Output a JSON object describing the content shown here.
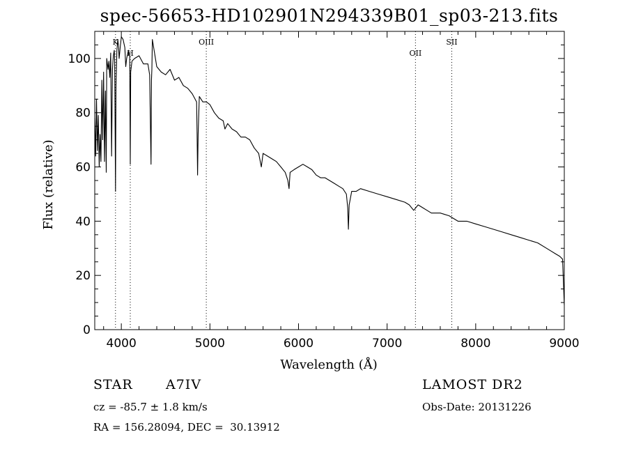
{
  "chart_data": {
    "type": "line",
    "title": "spec-56653-HD102901N294339B01_sp03-213.fits",
    "xlabel": "Wavelength (Å)",
    "ylabel": "Flux (relative)",
    "xlim": [
      3700,
      9000
    ],
    "ylim": [
      0,
      110
    ],
    "x_ticks": [
      4000,
      5000,
      6000,
      7000,
      8000,
      9000
    ],
    "y_ticks": [
      0,
      20,
      40,
      60,
      80,
      100
    ],
    "line_markers": [
      {
        "label": "K",
        "x": 3934
      },
      {
        "label": "H",
        "x": 4101
      },
      {
        "label": "OIII",
        "x": 4959
      },
      {
        "label": "OII",
        "x": 7320
      },
      {
        "label": "SII",
        "x": 7730
      }
    ],
    "series": [
      {
        "x": [
          3700,
          3710,
          3720,
          3730,
          3740,
          3750,
          3760,
          3770,
          3780,
          3790,
          3800,
          3810,
          3820,
          3830,
          3835,
          3850,
          3860,
          3870,
          3880,
          3890,
          3900,
          3910,
          3920,
          3925,
          3934,
          3940,
          3950,
          3960,
          3970,
          3975,
          3990,
          4000,
          4020,
          4040,
          4050,
          4060,
          4080,
          4095,
          4101,
          4106,
          4120,
          4150,
          4200,
          4250,
          4300,
          4320,
          4335,
          4340,
          4345,
          4350,
          4400,
          4450,
          4500,
          4550,
          4600,
          4650,
          4700,
          4750,
          4800,
          4850,
          4855,
          4861,
          4867,
          4880,
          4920,
          4960,
          5000,
          5050,
          5100,
          5150,
          5170,
          5200,
          5250,
          5300,
          5350,
          5400,
          5450,
          5500,
          5550,
          5580,
          5600,
          5650,
          5700,
          5750,
          5800,
          5850,
          5880,
          5893,
          5905,
          5950,
          6000,
          6050,
          6100,
          6150,
          6200,
          6250,
          6300,
          6350,
          6400,
          6450,
          6500,
          6540,
          6555,
          6563,
          6572,
          6600,
          6650,
          6700,
          6800,
          6900,
          7000,
          7100,
          7200,
          7250,
          7300,
          7350,
          7400,
          7450,
          7500,
          7600,
          7700,
          7750,
          7800,
          7900,
          8000,
          8100,
          8200,
          8300,
          8400,
          8500,
          8600,
          8700,
          8800,
          8850,
          8900,
          8950,
          8980,
          9000
        ],
        "y": [
          78,
          64,
          85,
          66,
          79,
          60,
          72,
          62,
          92,
          70,
          95,
          62,
          88,
          58,
          100,
          96,
          99,
          93,
          102,
          64,
          96,
          101,
          103,
          99,
          51,
          90,
          103,
          107,
          104,
          100,
          105,
          108,
          107,
          104,
          97,
          100,
          103,
          101,
          61,
          95,
          99,
          100,
          101,
          98,
          98,
          94,
          61,
          92,
          96,
          107,
          97,
          95,
          94,
          96,
          92,
          93,
          90,
          89,
          87,
          84,
          72,
          57,
          72,
          86,
          84,
          84,
          83,
          80,
          78,
          77,
          74,
          76,
          74,
          73,
          71,
          71,
          70,
          67,
          65,
          60,
          65,
          64,
          63,
          62,
          60,
          58,
          55,
          52,
          58,
          59,
          60,
          61,
          60,
          59,
          57,
          56,
          56,
          55,
          54,
          53,
          52,
          50,
          45,
          37,
          46,
          51,
          51,
          52,
          51,
          50,
          49,
          48,
          47,
          46,
          44,
          46,
          45,
          44,
          43,
          43,
          42,
          41,
          40,
          40,
          39,
          38,
          37,
          36,
          35,
          34,
          33,
          32,
          30,
          29,
          28,
          27,
          26,
          9
        ]
      }
    ]
  },
  "info": {
    "object_class": "STAR",
    "subclass": "A7IV",
    "survey": "LAMOST DR2",
    "cz": "cz = -85.7 ± 1.8 km/s",
    "obs_date": "Obs-Date: 20131226",
    "radec": "RA = 156.28094, DEC =  30.13912"
  }
}
